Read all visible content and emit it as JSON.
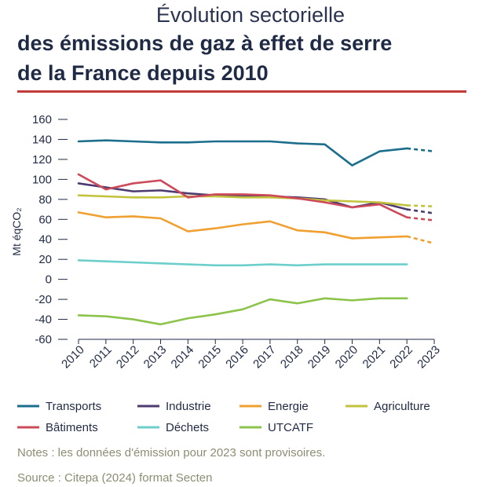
{
  "header": {
    "line1": "Évolution sectorielle",
    "line2": "des émissions de gaz à effet de serre",
    "line3": "de la France depuis 2010"
  },
  "footer": {
    "notes": "Notes : les données d'émission pour 2023 sont provisoires.",
    "source": "Source : Citepa (2024) format Secten"
  },
  "chart_data": {
    "type": "line",
    "title": "Évolution sectorielle des émissions de gaz à effet de serre de la France depuis 2010",
    "xlabel": "",
    "ylabel": "Mt éqCO₂",
    "ylim": [
      -60,
      160
    ],
    "yticks": [
      -60,
      -40,
      -20,
      0,
      20,
      40,
      60,
      80,
      100,
      120,
      140,
      160
    ],
    "ytick_labels": [
      "-60",
      "-40",
      "-20",
      "0",
      "20",
      "40",
      "60",
      "80",
      "100",
      "120",
      "140",
      "160"
    ],
    "categories": [
      "2010",
      "2011",
      "2012",
      "2013",
      "2014",
      "2015",
      "2016",
      "2017",
      "2018",
      "2019",
      "2020",
      "2021",
      "2022",
      "2023"
    ],
    "provisional_from": "2022",
    "legend_position": "bottom",
    "series": [
      {
        "name": "Transports",
        "color": "#1b6e8c",
        "values": [
          138,
          139,
          138,
          137,
          137,
          138,
          138,
          138,
          136,
          135,
          114,
          128,
          131,
          128
        ]
      },
      {
        "name": "Industrie",
        "color": "#4b3b6e",
        "values": [
          96,
          92,
          88,
          89,
          86,
          84,
          83,
          83,
          82,
          80,
          72,
          77,
          70,
          66
        ]
      },
      {
        "name": "Energie",
        "color": "#f0a030",
        "values": [
          67,
          62,
          63,
          61,
          48,
          51,
          55,
          58,
          49,
          47,
          41,
          42,
          43,
          36
        ]
      },
      {
        "name": "Agriculture",
        "color": "#c3c23c",
        "values": [
          84,
          83,
          82,
          82,
          83,
          83,
          82,
          82,
          81,
          79,
          78,
          77,
          74,
          73
        ]
      },
      {
        "name": "Bâtiments",
        "color": "#cc4a5a",
        "values": [
          105,
          90,
          96,
          99,
          82,
          85,
          85,
          84,
          81,
          77,
          72,
          75,
          62,
          59
        ]
      },
      {
        "name": "Déchets",
        "color": "#6dcfcb",
        "values": [
          19,
          18,
          17,
          16,
          15,
          14,
          14,
          15,
          14,
          15,
          15,
          15,
          15,
          null
        ]
      },
      {
        "name": "UTCATF",
        "color": "#8cc34b",
        "values": [
          -36,
          -37,
          -40,
          -45,
          -39,
          -35,
          -30,
          -20,
          -24,
          -19,
          -21,
          -19,
          -19,
          null
        ]
      }
    ]
  }
}
